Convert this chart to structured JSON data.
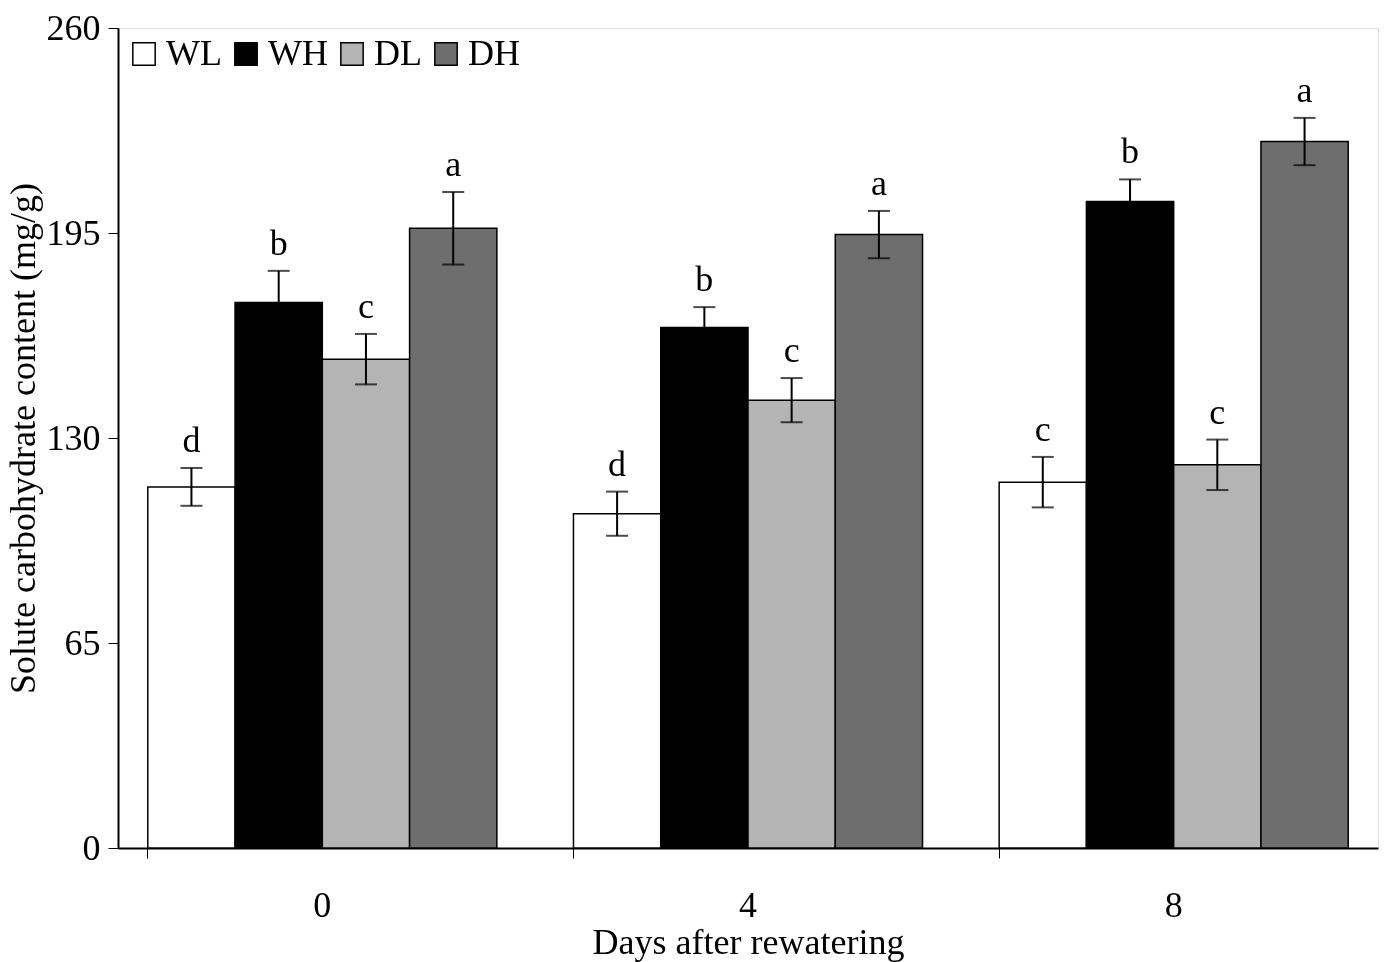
{
  "chart_data": {
    "type": "bar",
    "xlabel": "Days after rewatering",
    "ylabel": "Solute carbohydrate content (mg/g)",
    "categories": [
      "0",
      "4",
      "8"
    ],
    "series": [
      {
        "name": "WL",
        "color": "#ffffff",
        "values": [
          114.5,
          106,
          116
        ],
        "errors": [
          6,
          7,
          8
        ],
        "value_labels": [
          "d",
          "d",
          "c"
        ]
      },
      {
        "name": "WH",
        "color": "#000000",
        "values": [
          173,
          165,
          205
        ],
        "errors": [
          10,
          6.5,
          7
        ],
        "value_labels": [
          "b",
          "b",
          "b"
        ]
      },
      {
        "name": "DL",
        "color": "#b4b4b4",
        "values": [
          155,
          142,
          121.5
        ],
        "errors": [
          8,
          7,
          8
        ],
        "value_labels": [
          "c",
          "c",
          "c"
        ]
      },
      {
        "name": "DH",
        "color": "#6e6e6e",
        "values": [
          196.5,
          194.5,
          224
        ],
        "errors": [
          11.5,
          7.5,
          7.5
        ],
        "value_labels": [
          "a",
          "a",
          "a"
        ]
      }
    ],
    "ylim": [
      0,
      260
    ],
    "yticks": [
      0,
      65,
      130,
      195,
      260
    ],
    "grid": false,
    "legend": "top left"
  }
}
